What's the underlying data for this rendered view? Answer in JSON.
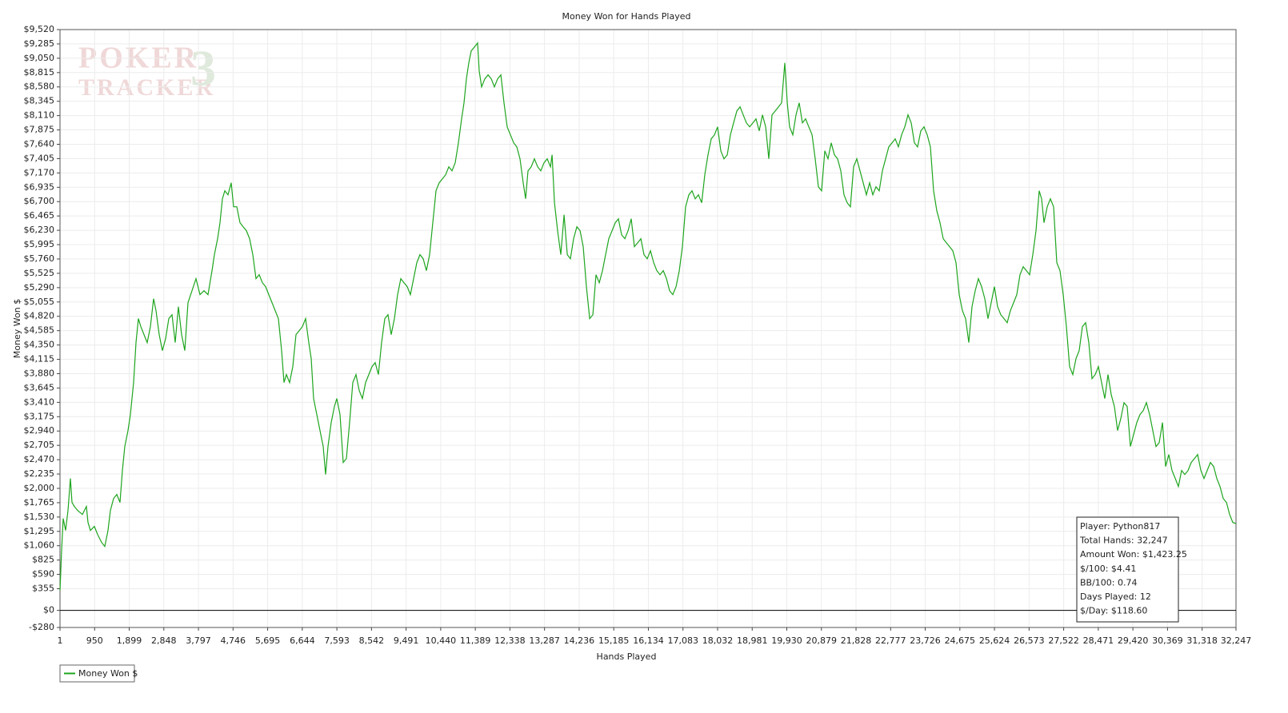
{
  "chart_data": {
    "type": "line",
    "title": "Money Won for Hands Played",
    "xlabel": "Hands Played",
    "ylabel": "Money Won $",
    "watermark": {
      "line1": "POKER",
      "line2": "TRACKER",
      "badge": "3"
    },
    "info": [
      "Player: Python817",
      "Total Hands: 32,247",
      "Amount Won: $1,423.25",
      "$/100: $4.41",
      "BB/100: 0.74",
      "Days Played: 12",
      "$/Day: $118.60"
    ],
    "grid": true,
    "zero_line": true,
    "legend": "bottom-left",
    "xlim": [
      1,
      32247
    ],
    "ylim": [
      -280,
      9520
    ],
    "xticks": [
      1,
      950,
      {
        "value": 1899,
        "label": "1,899"
      },
      {
        "value": 2848,
        "label": "2,848"
      },
      {
        "value": 3797,
        "label": "3,797"
      },
      {
        "value": 4746,
        "label": "4,746"
      },
      {
        "value": 5695,
        "label": "5,695"
      },
      {
        "value": 6644,
        "label": "6,644"
      },
      {
        "value": 7593,
        "label": "7,593"
      },
      {
        "value": 8542,
        "label": "8,542"
      },
      {
        "value": 9491,
        "label": "9,491"
      },
      {
        "value": 10440,
        "label": "10,440"
      },
      {
        "value": 11389,
        "label": "11,389"
      },
      {
        "value": 12338,
        "label": "12,338"
      },
      {
        "value": 13287,
        "label": "13,287"
      },
      {
        "value": 14236,
        "label": "14,236"
      },
      {
        "value": 15185,
        "label": "15,185"
      },
      {
        "value": 16134,
        "label": "16,134"
      },
      {
        "value": 17083,
        "label": "17,083"
      },
      {
        "value": 18032,
        "label": "18,032"
      },
      {
        "value": 18981,
        "label": "18,981"
      },
      {
        "value": 19930,
        "label": "19,930"
      },
      {
        "value": 20879,
        "label": "20,879"
      },
      {
        "value": 21828,
        "label": "21,828"
      },
      {
        "value": 22777,
        "label": "22,777"
      },
      {
        "value": 23726,
        "label": "23,726"
      },
      {
        "value": 24675,
        "label": "24,675"
      },
      {
        "value": 25624,
        "label": "25,624"
      },
      {
        "value": 26573,
        "label": "26,573"
      },
      {
        "value": 27522,
        "label": "27,522"
      },
      {
        "value": 28471,
        "label": "28,471"
      },
      {
        "value": 29420,
        "label": "29,420"
      },
      {
        "value": 30369,
        "label": "30,369"
      },
      {
        "value": 31318,
        "label": "31,318"
      },
      {
        "value": 32247,
        "label": "32,247"
      }
    ],
    "yticks": [
      {
        "value": -280,
        "label": "-$280"
      },
      {
        "value": 0,
        "label": "$0"
      },
      {
        "value": 355,
        "label": "$355"
      },
      {
        "value": 590,
        "label": "$590"
      },
      {
        "value": 825,
        "label": "$825"
      },
      {
        "value": 1060,
        "label": "$1,060"
      },
      {
        "value": 1295,
        "label": "$1,295"
      },
      {
        "value": 1530,
        "label": "$1,530"
      },
      {
        "value": 1765,
        "label": "$1,765"
      },
      {
        "value": 2000,
        "label": "$2,000"
      },
      {
        "value": 2235,
        "label": "$2,235"
      },
      {
        "value": 2470,
        "label": "$2,470"
      },
      {
        "value": 2705,
        "label": "$2,705"
      },
      {
        "value": 2940,
        "label": "$2,940"
      },
      {
        "value": 3175,
        "label": "$3,175"
      },
      {
        "value": 3410,
        "label": "$3,410"
      },
      {
        "value": 3645,
        "label": "$3,645"
      },
      {
        "value": 3880,
        "label": "$3,880"
      },
      {
        "value": 4115,
        "label": "$4,115"
      },
      {
        "value": 4350,
        "label": "$4,350"
      },
      {
        "value": 4585,
        "label": "$4,585"
      },
      {
        "value": 4820,
        "label": "$4,820"
      },
      {
        "value": 5055,
        "label": "$5,055"
      },
      {
        "value": 5290,
        "label": "$5,290"
      },
      {
        "value": 5525,
        "label": "$5,525"
      },
      {
        "value": 5760,
        "label": "$5,760"
      },
      {
        "value": 5995,
        "label": "$5,995"
      },
      {
        "value": 6230,
        "label": "$6,230"
      },
      {
        "value": 6465,
        "label": "$6,465"
      },
      {
        "value": 6700,
        "label": "$6,700"
      },
      {
        "value": 6935,
        "label": "$6,935"
      },
      {
        "value": 7170,
        "label": "$7,170"
      },
      {
        "value": 7405,
        "label": "$7,405"
      },
      {
        "value": 7640,
        "label": "$7,640"
      },
      {
        "value": 7875,
        "label": "$7,875"
      },
      {
        "value": 8110,
        "label": "$8,110"
      },
      {
        "value": 8345,
        "label": "$8,345"
      },
      {
        "value": 8580,
        "label": "$8,580"
      },
      {
        "value": 8815,
        "label": "$8,815"
      },
      {
        "value": 9050,
        "label": "$9,050"
      },
      {
        "value": 9285,
        "label": "$9,285"
      },
      {
        "value": 9520,
        "label": "$9,520"
      }
    ],
    "x": [
      1,
      45,
      89,
      155,
      220,
      286,
      330,
      396,
      484,
      615,
      725,
      769,
      835,
      944,
      1032,
      1142,
      1230,
      1317,
      1383,
      1471,
      1559,
      1646,
      1712,
      1778,
      1866,
      1932,
      2019,
      2085,
      2151,
      2217,
      2304,
      2392,
      2480,
      2568,
      2633,
      2721,
      2809,
      2897,
      2985,
      3072,
      3160,
      3248,
      3336,
      3423,
      3511,
      3621,
      3731,
      3840,
      3950,
      4060,
      4169,
      4235,
      4323,
      4389,
      4454,
      4520,
      4608,
      4696,
      4761,
      4849,
      4937,
      5025,
      5112,
      5200,
      5288,
      5376,
      5463,
      5551,
      5639,
      5727,
      5814,
      5902,
      5990,
      6078,
      6143,
      6209,
      6297,
      6385,
      6472,
      6560,
      6648,
      6736,
      6823,
      6889,
      6955,
      7043,
      7130,
      7218,
      7284,
      7350,
      7438,
      7525,
      7591,
      7679,
      7767,
      7854,
      7942,
      8030,
      8118,
      8205,
      8293,
      8381,
      8469,
      8556,
      8644,
      8732,
      8820,
      8907,
      8995,
      9083,
      9171,
      9258,
      9346,
      9434,
      9522,
      9609,
      9697,
      9785,
      9873,
      9960,
      10048,
      10136,
      10224,
      10311,
      10399,
      10487,
      10575,
      10662,
      10750,
      10838,
      10926,
      11013,
      11079,
      11145,
      11211,
      11277,
      11365,
      11452,
      11496,
      11562,
      11650,
      11738,
      11826,
      11913,
      12001,
      12089,
      12176,
      12264,
      12352,
      12440,
      12527,
      12615,
      12703,
      12768,
      12834,
      12922,
      13010,
      13098,
      13185,
      13273,
      13361,
      13449,
      13493,
      13559,
      13646,
      13734,
      13822,
      13910,
      13997,
      14085,
      14173,
      14261,
      14348,
      14436,
      14524,
      14612,
      14699,
      14787,
      14875,
      14962,
      15050,
      15138,
      15226,
      15313,
      15401,
      15489,
      15577,
      15664,
      15752,
      15840,
      15928,
      16015,
      16103,
      16191,
      16279,
      16366,
      16454,
      16542,
      16630,
      16717,
      16805,
      16893,
      16981,
      17068,
      17156,
      17244,
      17331,
      17419,
      17507,
      17595,
      17682,
      17770,
      17858,
      17946,
      18033,
      18121,
      18209,
      18297,
      18384,
      18472,
      18560,
      18648,
      18735,
      18823,
      18911,
      18999,
      19086,
      19174,
      19262,
      19350,
      19437,
      19525,
      19613,
      19701,
      19788,
      19876,
      19942,
      20007,
      20095,
      20183,
      20271,
      20358,
      20446,
      20534,
      20622,
      20709,
      20797,
      20885,
      20972,
      21060,
      21148,
      21236,
      21323,
      21411,
      21499,
      21587,
      21674,
      21762,
      21850,
      21938,
      22025,
      22113,
      22201,
      22289,
      22376,
      22464,
      22552,
      22640,
      22727,
      22815,
      22903,
      22991,
      23078,
      23166,
      23254,
      23342,
      23429,
      23517,
      23605,
      23693,
      23780,
      23868,
      23956,
      24043,
      24131,
      24219,
      24307,
      24394,
      24482,
      24570,
      24658,
      24745,
      24833,
      24921,
      25009,
      25096,
      25184,
      25272,
      25360,
      25447,
      25535,
      25623,
      25711,
      25798,
      25886,
      25974,
      26062,
      26149,
      26237,
      26325,
      26413,
      26500,
      26588,
      26676,
      26763,
      26851,
      26917,
      26983,
      27071,
      27158,
      27246,
      27334,
      27422,
      27509,
      27597,
      27685,
      27773,
      27860,
      27948,
      28036,
      28124,
      28211,
      28299,
      28387,
      28475,
      28562,
      28650,
      28738,
      28826,
      28913,
      29001,
      29089,
      29177,
      29264,
      29352,
      29440,
      29528,
      29615,
      29703,
      29791,
      29879,
      29966,
      30054,
      30142,
      30230,
      30317,
      30405,
      30493,
      30581,
      30668,
      30756,
      30844,
      30932,
      31019,
      31107,
      31195,
      31283,
      31370,
      31458,
      31546,
      31634,
      31721,
      31809,
      31897,
      31985,
      32072,
      32160,
      32247
    ],
    "series": [
      {
        "name": "Money Won $",
        "color": "#1ea51e",
        "values": [
          328,
          983,
          1507,
          1310,
          1638,
          2162,
          1769,
          1703,
          1638,
          1572,
          1703,
          1441,
          1310,
          1376,
          1245,
          1114,
          1048,
          1310,
          1638,
          1834,
          1900,
          1769,
          2293,
          2686,
          2948,
          3210,
          3734,
          4389,
          4782,
          4651,
          4520,
          4389,
          4651,
          5109,
          4913,
          4520,
          4258,
          4454,
          4782,
          4847,
          4389,
          4978,
          4520,
          4258,
          5044,
          5240,
          5437,
          5175,
          5240,
          5175,
          5568,
          5830,
          6092,
          6354,
          6747,
          6878,
          6812,
          7009,
          6616,
          6616,
          6354,
          6288,
          6223,
          6092,
          5830,
          5437,
          5502,
          5371,
          5306,
          5175,
          5044,
          4913,
          4782,
          4258,
          3734,
          3865,
          3734,
          3996,
          4520,
          4585,
          4651,
          4782,
          4389,
          4127,
          3472,
          3210,
          2948,
          2686,
          2227,
          2686,
          3079,
          3341,
          3472,
          3210,
          2424,
          2489,
          3079,
          3734,
          3865,
          3603,
          3472,
          3734,
          3865,
          3996,
          4061,
          3865,
          4389,
          4782,
          4847,
          4520,
          4782,
          5175,
          5437,
          5371,
          5306,
          5175,
          5437,
          5699,
          5830,
          5764,
          5568,
          5830,
          6354,
          6878,
          7009,
          7074,
          7140,
          7271,
          7205,
          7336,
          7664,
          8057,
          8319,
          8712,
          8974,
          9170,
          9236,
          9301,
          8843,
          8581,
          8712,
          8777,
          8712,
          8581,
          8712,
          8777,
          8319,
          7926,
          7795,
          7664,
          7598,
          7402,
          7009,
          6747,
          7205,
          7271,
          7402,
          7271,
          7205,
          7336,
          7402,
          7271,
          7467,
          6681,
          6223,
          5830,
          6485,
          5830,
          5764,
          6092,
          6288,
          6223,
          5961,
          5306,
          4782,
          4847,
          5502,
          5371,
          5568,
          5830,
          6092,
          6223,
          6354,
          6419,
          6157,
          6092,
          6223,
          6419,
          5961,
          6026,
          6092,
          5830,
          5764,
          5895,
          5699,
          5568,
          5502,
          5568,
          5437,
          5240,
          5175,
          5306,
          5568,
          5961,
          6616,
          6812,
          6878,
          6747,
          6812,
          6681,
          7140,
          7467,
          7729,
          7795,
          7926,
          7533,
          7402,
          7467,
          7795,
          7991,
          8188,
          8253,
          8122,
          7991,
          7926,
          7991,
          8057,
          7860,
          8122,
          7926,
          7402,
          8122,
          8188,
          8253,
          8319,
          8974,
          8319,
          7926,
          7795,
          8122,
          8319,
          7991,
          8057,
          7926,
          7795,
          7402,
          6943,
          6878,
          7533,
          7402,
          7664,
          7467,
          7402,
          7205,
          6812,
          6681,
          6616,
          7271,
          7402,
          7205,
          7009,
          6812,
          7009,
          6812,
          6943,
          6878,
          7205,
          7402,
          7598,
          7664,
          7729,
          7598,
          7795,
          7926,
          8122,
          7991,
          7664,
          7598,
          7860,
          7926,
          7795,
          7598,
          6878,
          6550,
          6354,
          6092,
          6026,
          5961,
          5895,
          5699,
          5175,
          4913,
          4782,
          4389,
          4978,
          5240,
          5437,
          5306,
          5109,
          4782,
          5044,
          5306,
          4978,
          4847,
          4782,
          4716,
          4913,
          5044,
          5175,
          5502,
          5633,
          5568,
          5502,
          5830,
          6223,
          6878,
          6747,
          6354,
          6616,
          6747,
          6616,
          5699,
          5568,
          5175,
          4651,
          3996,
          3865,
          4127,
          4258,
          4651,
          4716,
          4389,
          3799,
          3865,
          3996,
          3734,
          3472,
          3865,
          3537,
          3341,
          2948,
          3144,
          3406,
          3341,
          2686,
          2882,
          3079,
          3210,
          3275,
          3406,
          3210,
          2948,
          2686,
          2751,
          3079,
          2358,
          2555,
          2293,
          2162,
          2031,
          2293,
          2227,
          2293,
          2424,
          2489,
          2555,
          2293,
          2162,
          2293,
          2424,
          2358,
          2162,
          2031,
          1834,
          1769,
          1572,
          1441,
          1423
        ]
      }
    ]
  }
}
